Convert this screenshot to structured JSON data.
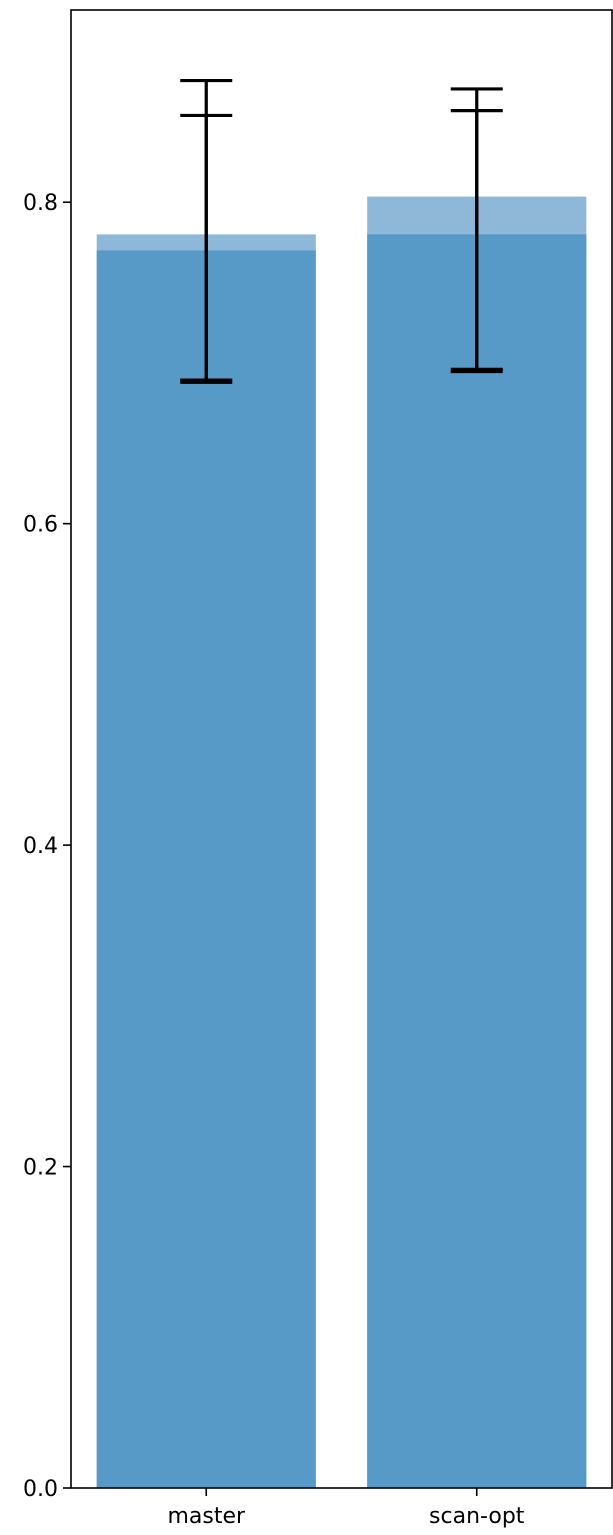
{
  "chart_data": {
    "type": "bar",
    "title": "",
    "xlabel": "",
    "ylabel": "",
    "categories": [
      "master",
      "scan-opt"
    ],
    "series": [
      {
        "values": [
          0.78,
          0.8035
        ],
        "error_low": [
          0.6893,
          0.6947
        ],
        "error_high": [
          0.8757,
          0.8705
        ],
        "color": "#8fb8d8"
      },
      {
        "values": [
          0.77,
          0.78
        ],
        "error_low": [
          0.688,
          0.696
        ],
        "error_high": [
          0.854,
          0.857
        ],
        "color": "#5799c7"
      }
    ],
    "ylim": [
      0,
      0.9196
    ],
    "yticks": [
      0.0,
      0.2,
      0.4,
      0.6,
      0.8
    ],
    "ytick_labels": [
      "0.0",
      "0.2",
      "0.4",
      "0.6",
      "0.8"
    ],
    "grid": false
  }
}
